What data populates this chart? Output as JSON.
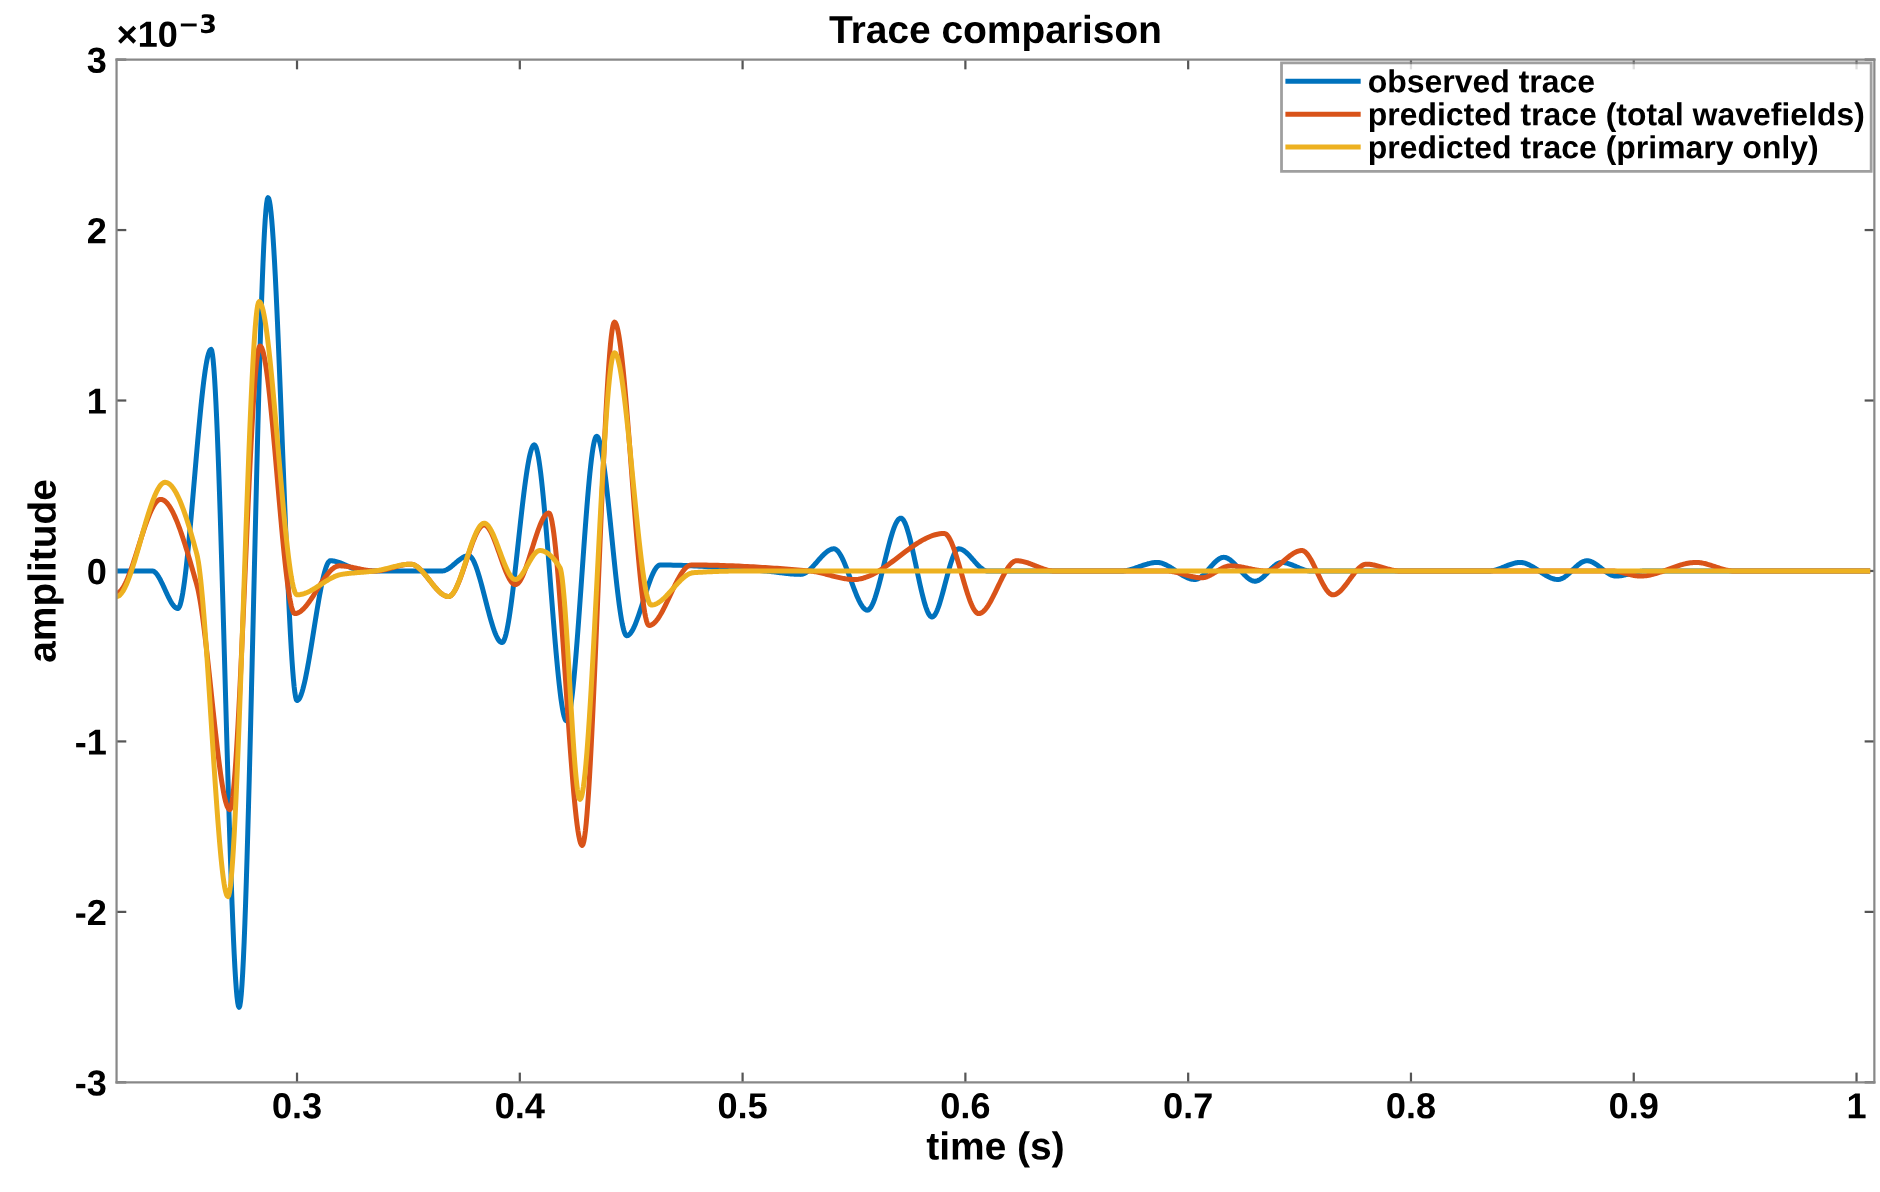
{
  "chart_data": {
    "type": "line",
    "title": "Trace comparison",
    "xlabel": "time (s)",
    "ylabel": "amplitude",
    "annotations": [
      "×10$^{−3}$"
    ],
    "xlim": [
      0.219,
      1.008
    ],
    "xticks": [
      0.3,
      0.4,
      0.5,
      0.6,
      0.7,
      0.8,
      0.9,
      1
    ],
    "ylim": [
      -3,
      3
    ],
    "yticks": [
      -3,
      -2,
      -1,
      0,
      1,
      2,
      3
    ],
    "grid": false,
    "legend": "top right",
    "line_style": "solid",
    "marker": "none",
    "series": [
      {
        "name": "observed trace",
        "color": "#0072bd",
        "x": [
          0.219,
          0.235,
          0.2465,
          0.2614,
          0.274,
          0.287,
          0.3,
          0.315,
          0.33,
          0.365,
          0.377,
          0.392,
          0.4065,
          0.421,
          0.4345,
          0.448,
          0.463,
          0.51,
          0.526,
          0.541,
          0.556,
          0.571,
          0.585,
          0.597,
          0.61,
          0.67,
          0.686,
          0.703,
          0.716,
          0.73,
          0.742,
          0.755,
          0.835,
          0.849,
          0.866,
          0.879,
          0.892,
          0.905,
          1.005
        ],
        "values": [
          0,
          0,
          -0.22,
          1.3,
          -2.56,
          2.19,
          -0.76,
          0.06,
          0,
          0,
          0.09,
          -0.42,
          0.74,
          -0.88,
          0.79,
          -0.38,
          0.035,
          0,
          -0.02,
          0.13,
          -0.23,
          0.31,
          -0.27,
          0.13,
          0,
          0,
          0.05,
          -0.05,
          0.08,
          -0.06,
          0.05,
          0,
          0,
          0.05,
          -0.05,
          0.06,
          -0.03,
          0,
          0
        ]
      },
      {
        "name": "predicted trace (total wavefields)",
        "color": "#d95319",
        "x": [
          0.219,
          0.2388,
          0.255,
          0.2698,
          0.2834,
          0.299,
          0.319,
          0.335,
          0.351,
          0.368,
          0.384,
          0.398,
          0.413,
          0.428,
          0.4425,
          0.458,
          0.477,
          0.53,
          0.55,
          0.5905,
          0.606,
          0.623,
          0.64,
          0.69,
          0.706,
          0.719,
          0.735,
          0.751,
          0.765,
          0.78,
          0.795,
          0.89,
          0.903,
          0.928,
          0.945,
          1.005
        ],
        "values": [
          -0.13,
          0.42,
          -0.08,
          -1.4,
          1.32,
          -0.25,
          0.03,
          0,
          0.04,
          -0.15,
          0.27,
          -0.08,
          0.34,
          -1.61,
          1.46,
          -0.32,
          0.035,
          0,
          -0.05,
          0.22,
          -0.25,
          0.06,
          0,
          0,
          -0.04,
          0.03,
          0,
          0.12,
          -0.14,
          0.04,
          0,
          0,
          -0.03,
          0.05,
          0,
          0
        ]
      },
      {
        "name": "predicted trace (primary only)",
        "color": "#edb120",
        "x": [
          0.219,
          0.2408,
          0.255,
          0.269,
          0.283,
          0.3,
          0.32,
          0.335,
          0.351,
          0.368,
          0.384,
          0.398,
          0.409,
          0.418,
          0.427,
          0.4425,
          0.459,
          0.478,
          0.5,
          1.005
        ],
        "values": [
          -0.15,
          0.52,
          0.1,
          -1.91,
          1.58,
          -0.14,
          -0.02,
          0,
          0.04,
          -0.15,
          0.28,
          -0.05,
          0.12,
          0.02,
          -1.34,
          1.28,
          -0.2,
          -0.01,
          0,
          0
        ]
      }
    ]
  }
}
